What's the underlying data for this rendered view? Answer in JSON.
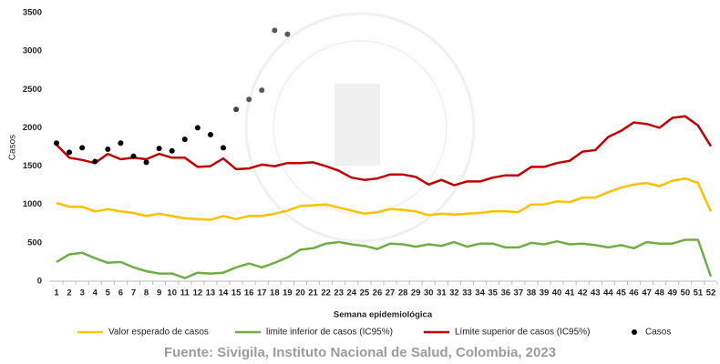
{
  "chart_data": {
    "type": "line",
    "x_label": "Semana epidemiológica",
    "y_label": "Casos",
    "source": "Fuente: Sivigila, Instituto Nacional de Salud, Colombia, 2023",
    "categories": [
      1,
      2,
      3,
      4,
      5,
      6,
      7,
      8,
      9,
      10,
      11,
      12,
      13,
      14,
      15,
      16,
      17,
      18,
      19,
      20,
      21,
      22,
      23,
      24,
      25,
      26,
      27,
      28,
      29,
      30,
      31,
      32,
      33,
      34,
      35,
      36,
      37,
      38,
      39,
      40,
      41,
      42,
      43,
      44,
      45,
      46,
      47,
      48,
      49,
      50,
      51,
      52
    ],
    "ylim": [
      0,
      3500
    ],
    "yticks": [
      0,
      500,
      1000,
      1500,
      2000,
      2500,
      3000,
      3500
    ],
    "grid": false,
    "legend": "bottom",
    "series": [
      {
        "name": "Valor esperado de casos",
        "color": "#ffc000",
        "style": "line",
        "values": [
          1020,
          970,
          970,
          910,
          940,
          910,
          890,
          850,
          880,
          850,
          820,
          810,
          800,
          850,
          810,
          850,
          850,
          880,
          920,
          980,
          990,
          1000,
          960,
          920,
          880,
          900,
          940,
          930,
          910,
          860,
          880,
          870,
          880,
          890,
          910,
          910,
          900,
          1000,
          1000,
          1040,
          1030,
          1090,
          1090,
          1160,
          1220,
          1260,
          1280,
          1240,
          1310,
          1340,
          1280,
          910
        ]
      },
      {
        "name": "limite inferior de casos (IC95%)",
        "color": "#70ad47",
        "style": "line",
        "values": [
          250,
          350,
          370,
          300,
          240,
          250,
          180,
          130,
          100,
          100,
          40,
          110,
          100,
          110,
          180,
          230,
          180,
          240,
          310,
          410,
          430,
          490,
          510,
          480,
          460,
          420,
          490,
          480,
          450,
          480,
          460,
          510,
          450,
          490,
          490,
          440,
          440,
          500,
          480,
          520,
          480,
          490,
          470,
          440,
          470,
          430,
          510,
          490,
          490,
          540,
          540,
          60
        ]
      },
      {
        "name": "Límite superior de casos (IC95%)",
        "color": "#c00000",
        "style": "line",
        "values": [
          1780,
          1610,
          1580,
          1540,
          1660,
          1590,
          1610,
          1590,
          1660,
          1610,
          1610,
          1490,
          1500,
          1600,
          1460,
          1470,
          1520,
          1500,
          1540,
          1540,
          1550,
          1500,
          1440,
          1350,
          1320,
          1340,
          1390,
          1390,
          1360,
          1260,
          1320,
          1250,
          1300,
          1300,
          1350,
          1380,
          1380,
          1490,
          1490,
          1540,
          1570,
          1690,
          1710,
          1880,
          1960,
          2070,
          2050,
          2000,
          2130,
          2150,
          2030,
          1760
        ]
      },
      {
        "name": "Casos",
        "color": "#000000",
        "style": "scatter",
        "point_colors": [
          "#000000",
          "#000000",
          "#000000",
          "#000000",
          "#000000",
          "#000000",
          "#000000",
          "#000000",
          "#000000",
          "#000000",
          "#000000",
          "#000000",
          "#000000",
          "#000000",
          "#404040",
          "#595959",
          "#595959",
          "#595959",
          "#595959"
        ],
        "values": [
          1800,
          1680,
          1740,
          1560,
          1720,
          1800,
          1630,
          1550,
          1730,
          1700,
          1850,
          2000,
          1910,
          1740,
          2240,
          2370,
          2490,
          3270,
          3220,
          null,
          null,
          null,
          null,
          null,
          null,
          null,
          null,
          null,
          null,
          null,
          null,
          null,
          null,
          null,
          null,
          null,
          null,
          null,
          null,
          null,
          null,
          null,
          null,
          null,
          null,
          null,
          null,
          null,
          null,
          null,
          null,
          null
        ]
      }
    ]
  }
}
